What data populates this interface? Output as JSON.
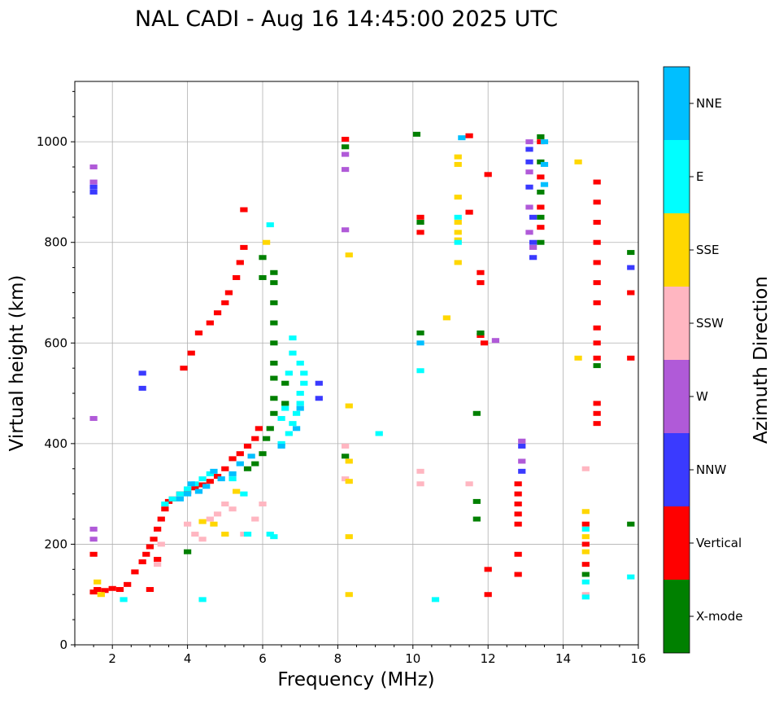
{
  "chart_data": {
    "type": "scatter",
    "title": "NAL CADI - Aug 16 14:45:00 2025 UTC",
    "xlabel": "Frequency (MHz)",
    "ylabel": "Virtual height (km)",
    "xlim": [
      1,
      16
    ],
    "ylim": [
      0,
      1120
    ],
    "xticks": [
      2,
      4,
      6,
      8,
      10,
      12,
      14,
      16
    ],
    "yticks": [
      0,
      200,
      400,
      600,
      800,
      1000
    ],
    "grid": true,
    "colorbar": {
      "label": "Azimuth Direction",
      "categories": [
        "X-mode",
        "Vertical",
        "NNW",
        "W",
        "SSW",
        "SSE",
        "E",
        "NNE"
      ],
      "colors": [
        "#008000",
        "#ff0000",
        "#3a3aff",
        "#b05ad8",
        "#ffb6c1",
        "#ffd700",
        "#00ffff",
        "#00bfff"
      ]
    },
    "series": [
      {
        "name": "Vertical",
        "color": "#ff0000",
        "points": [
          [
            1.5,
            105
          ],
          [
            1.6,
            110
          ],
          [
            1.8,
            108
          ],
          [
            2.0,
            112
          ],
          [
            2.2,
            110
          ],
          [
            2.4,
            120
          ],
          [
            2.6,
            145
          ],
          [
            2.8,
            165
          ],
          [
            2.9,
            180
          ],
          [
            3.0,
            195
          ],
          [
            3.1,
            210
          ],
          [
            3.2,
            230
          ],
          [
            3.3,
            250
          ],
          [
            3.4,
            270
          ],
          [
            3.5,
            285
          ],
          [
            3.6,
            290
          ],
          [
            3.8,
            300
          ],
          [
            4.0,
            305
          ],
          [
            4.2,
            312
          ],
          [
            4.4,
            318
          ],
          [
            4.6,
            325
          ],
          [
            4.8,
            335
          ],
          [
            5.0,
            350
          ],
          [
            5.2,
            370
          ],
          [
            5.4,
            380
          ],
          [
            5.6,
            395
          ],
          [
            5.8,
            410
          ],
          [
            5.9,
            430
          ],
          [
            3.9,
            550
          ],
          [
            4.1,
            580
          ],
          [
            4.3,
            620
          ],
          [
            4.6,
            640
          ],
          [
            4.8,
            660
          ],
          [
            5.0,
            680
          ],
          [
            5.1,
            700
          ],
          [
            5.3,
            730
          ],
          [
            5.4,
            760
          ],
          [
            5.5,
            790
          ],
          [
            3.0,
            110
          ],
          [
            3.2,
            170
          ],
          [
            12.0,
            150
          ],
          [
            12.0,
            100
          ],
          [
            11.9,
            600
          ],
          [
            12.8,
            140
          ],
          [
            12.8,
            180
          ],
          [
            12.8,
            240
          ],
          [
            12.8,
            260
          ],
          [
            12.8,
            280
          ],
          [
            12.8,
            300
          ],
          [
            12.8,
            320
          ],
          [
            13.4,
            1000
          ],
          [
            13.4,
            930
          ],
          [
            13.4,
            870
          ],
          [
            13.4,
            830
          ],
          [
            14.9,
            920
          ],
          [
            14.9,
            880
          ],
          [
            14.9,
            840
          ],
          [
            14.9,
            800
          ],
          [
            14.9,
            760
          ],
          [
            14.9,
            720
          ],
          [
            14.9,
            680
          ],
          [
            14.9,
            630
          ],
          [
            14.9,
            600
          ],
          [
            14.9,
            570
          ],
          [
            14.9,
            480
          ],
          [
            14.9,
            460
          ],
          [
            14.9,
            440
          ],
          [
            14.6,
            160
          ],
          [
            14.6,
            200
          ],
          [
            14.6,
            240
          ],
          [
            15.8,
            700
          ],
          [
            15.8,
            570
          ],
          [
            10.2,
            820
          ],
          [
            10.2,
            850
          ],
          [
            11.8,
            740
          ],
          [
            11.8,
            720
          ],
          [
            8.2,
            1005
          ],
          [
            11.5,
            1012
          ],
          [
            12.0,
            935
          ],
          [
            11.5,
            860
          ],
          [
            11.8,
            615
          ],
          [
            5.5,
            865
          ],
          [
            1.5,
            180
          ]
        ]
      },
      {
        "name": "X-mode",
        "color": "#008000",
        "points": [
          [
            5.6,
            350
          ],
          [
            5.8,
            360
          ],
          [
            6.0,
            380
          ],
          [
            6.1,
            410
          ],
          [
            6.2,
            430
          ],
          [
            6.3,
            460
          ],
          [
            6.3,
            490
          ],
          [
            6.3,
            530
          ],
          [
            6.3,
            560
          ],
          [
            6.3,
            600
          ],
          [
            6.3,
            640
          ],
          [
            6.3,
            680
          ],
          [
            6.3,
            720
          ],
          [
            6.3,
            740
          ],
          [
            6.0,
            730
          ],
          [
            6.0,
            770
          ],
          [
            6.6,
            480
          ],
          [
            6.6,
            520
          ],
          [
            13.4,
            1010
          ],
          [
            13.4,
            960
          ],
          [
            13.4,
            900
          ],
          [
            13.4,
            850
          ],
          [
            13.4,
            800
          ],
          [
            11.8,
            620
          ],
          [
            11.7,
            460
          ],
          [
            11.7,
            250
          ],
          [
            11.7,
            285
          ],
          [
            10.2,
            620
          ],
          [
            10.2,
            840
          ],
          [
            14.6,
            140
          ],
          [
            15.8,
            780
          ],
          [
            8.2,
            375
          ],
          [
            8.2,
            990
          ],
          [
            10.1,
            1015
          ],
          [
            14.9,
            555
          ],
          [
            15.8,
            240
          ],
          [
            4.0,
            185
          ]
        ]
      },
      {
        "name": "NNW",
        "color": "#3a3aff",
        "points": [
          [
            1.5,
            900
          ],
          [
            1.5,
            910
          ],
          [
            7.5,
            490
          ],
          [
            7.5,
            520
          ],
          [
            12.9,
            345
          ],
          [
            12.9,
            395
          ],
          [
            13.1,
            960
          ],
          [
            13.1,
            985
          ],
          [
            13.1,
            910
          ],
          [
            13.2,
            850
          ],
          [
            13.2,
            800
          ],
          [
            13.2,
            770
          ],
          [
            15.8,
            750
          ],
          [
            2.8,
            540
          ],
          [
            2.8,
            510
          ]
        ]
      },
      {
        "name": "W",
        "color": "#b05ad8",
        "points": [
          [
            1.5,
            920
          ],
          [
            1.5,
            950
          ],
          [
            1.5,
            450
          ],
          [
            1.5,
            210
          ],
          [
            1.5,
            230
          ],
          [
            12.9,
            405
          ],
          [
            12.9,
            365
          ],
          [
            13.1,
            1000
          ],
          [
            13.1,
            940
          ],
          [
            13.1,
            870
          ],
          [
            13.1,
            820
          ],
          [
            13.2,
            790
          ],
          [
            8.2,
            945
          ],
          [
            8.2,
            825
          ],
          [
            8.2,
            975
          ],
          [
            12.2,
            605
          ]
        ]
      },
      {
        "name": "SSW",
        "color": "#ffb6c1",
        "points": [
          [
            3.2,
            160
          ],
          [
            3.3,
            200
          ],
          [
            4.0,
            240
          ],
          [
            4.2,
            220
          ],
          [
            4.4,
            210
          ],
          [
            4.6,
            250
          ],
          [
            4.8,
            260
          ],
          [
            5.0,
            280
          ],
          [
            5.2,
            270
          ],
          [
            5.5,
            220
          ],
          [
            5.8,
            250
          ],
          [
            6.0,
            280
          ],
          [
            8.2,
            330
          ],
          [
            8.2,
            395
          ],
          [
            10.2,
            320
          ],
          [
            10.2,
            345
          ],
          [
            11.5,
            320
          ],
          [
            14.6,
            350
          ],
          [
            14.6,
            100
          ]
        ]
      },
      {
        "name": "SSE",
        "color": "#ffd700",
        "points": [
          [
            1.6,
            125
          ],
          [
            1.7,
            100
          ],
          [
            4.4,
            245
          ],
          [
            4.7,
            240
          ],
          [
            5.0,
            220
          ],
          [
            5.3,
            305
          ],
          [
            11.2,
            970
          ],
          [
            11.2,
            955
          ],
          [
            11.2,
            890
          ],
          [
            11.2,
            840
          ],
          [
            11.2,
            820
          ],
          [
            11.2,
            805
          ],
          [
            8.3,
            775
          ],
          [
            8.3,
            475
          ],
          [
            8.3,
            365
          ],
          [
            8.3,
            325
          ],
          [
            8.3,
            215
          ],
          [
            8.3,
            100
          ],
          [
            10.9,
            650
          ],
          [
            11.2,
            760
          ],
          [
            14.4,
            960
          ],
          [
            14.4,
            570
          ],
          [
            14.6,
            265
          ],
          [
            14.6,
            215
          ],
          [
            14.6,
            185
          ],
          [
            6.1,
            800
          ]
        ]
      },
      {
        "name": "E",
        "color": "#00ffff",
        "points": [
          [
            3.4,
            280
          ],
          [
            3.6,
            290
          ],
          [
            3.8,
            300
          ],
          [
            4.0,
            310
          ],
          [
            4.2,
            320
          ],
          [
            4.4,
            330
          ],
          [
            4.6,
            340
          ],
          [
            5.2,
            330
          ],
          [
            5.5,
            300
          ],
          [
            6.2,
            220
          ],
          [
            6.3,
            215
          ],
          [
            6.5,
            400
          ],
          [
            6.7,
            420
          ],
          [
            6.8,
            440
          ],
          [
            6.9,
            460
          ],
          [
            7.0,
            480
          ],
          [
            7.0,
            500
          ],
          [
            7.1,
            520
          ],
          [
            7.1,
            540
          ],
          [
            7.0,
            560
          ],
          [
            6.8,
            580
          ],
          [
            6.7,
            540
          ],
          [
            6.6,
            470
          ],
          [
            6.5,
            450
          ],
          [
            6.8,
            610
          ],
          [
            9.1,
            420
          ],
          [
            10.6,
            90
          ],
          [
            10.2,
            545
          ],
          [
            11.2,
            800
          ],
          [
            11.2,
            850
          ],
          [
            14.6,
            95
          ],
          [
            14.6,
            125
          ],
          [
            15.8,
            135
          ],
          [
            2.3,
            90
          ],
          [
            4.4,
            90
          ],
          [
            6.2,
            835
          ],
          [
            5.6,
            220
          ],
          [
            14.6,
            230
          ]
        ]
      },
      {
        "name": "NNE",
        "color": "#00bfff",
        "points": [
          [
            3.8,
            290
          ],
          [
            4.0,
            300
          ],
          [
            4.1,
            320
          ],
          [
            4.3,
            305
          ],
          [
            4.5,
            315
          ],
          [
            4.7,
            345
          ],
          [
            4.9,
            330
          ],
          [
            5.2,
            340
          ],
          [
            5.4,
            360
          ],
          [
            6.5,
            395
          ],
          [
            6.9,
            430
          ],
          [
            7.0,
            470
          ],
          [
            13.5,
            1000
          ],
          [
            13.5,
            955
          ],
          [
            13.5,
            915
          ],
          [
            11.3,
            1008
          ],
          [
            10.2,
            600
          ],
          [
            5.7,
            375
          ]
        ]
      }
    ]
  }
}
